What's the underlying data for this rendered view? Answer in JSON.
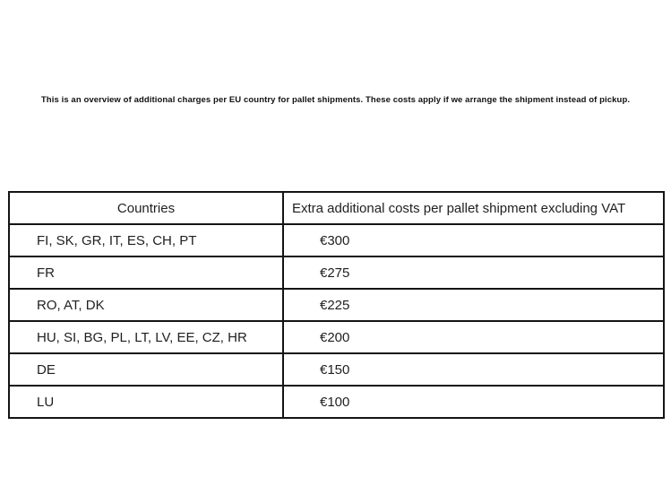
{
  "intro": "This is an overview of additional charges per EU country for pallet shipments. These costs apply if we arrange the shipment instead of pickup.",
  "table": {
    "headers": [
      "Countries",
      "Extra additional costs per pallet shipment excluding VAT"
    ],
    "rows": [
      {
        "countries": "FI, SK, GR, IT, ES, CH, PT",
        "cost": "€300"
      },
      {
        "countries": "FR",
        "cost": "€275"
      },
      {
        "countries": "RO, AT, DK",
        "cost": "€225"
      },
      {
        "countries": "HU, SI, BG, PL, LT, LV, EE, CZ, HR",
        "cost": "€200"
      },
      {
        "countries": "DE",
        "cost": "€150"
      },
      {
        "countries": "LU",
        "cost": "€100"
      }
    ]
  },
  "colors": {
    "background": "#ffffff",
    "text": "#1f1f1f",
    "border": "#141414"
  }
}
